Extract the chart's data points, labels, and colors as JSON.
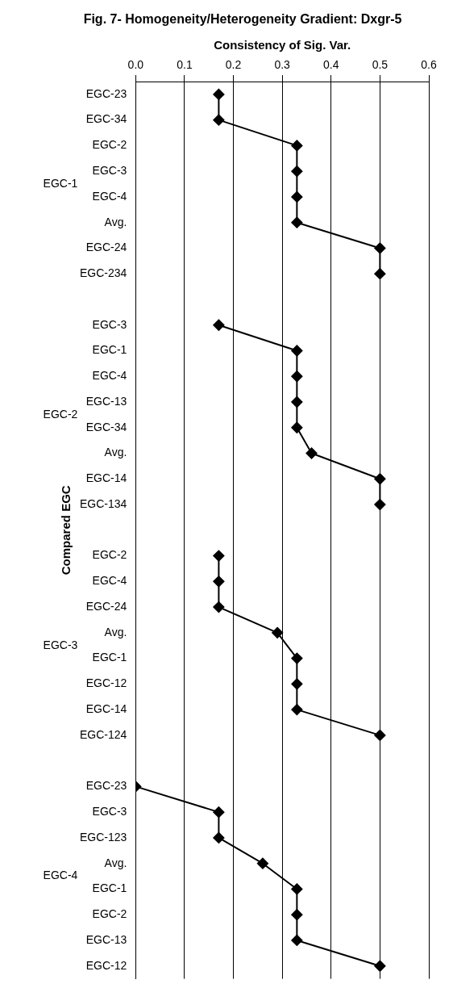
{
  "chart_data": {
    "type": "line",
    "orientation": "horizontal",
    "title": "Fig. 7- Homogeneity/Heterogeneity Gradient: Dxgr-5",
    "xlabel": "Consistency of Sig. Var.",
    "ylabel": "Compared EGC",
    "annotations": [
      "EGC-1",
      "EGC-2",
      "EGC-3",
      "EGC-4"
    ],
    "categories": [
      "EGC-23",
      "EGC-34",
      "EGC-2",
      "EGC-3",
      "EGC-4",
      "Avg.",
      "EGC-24",
      "EGC-234",
      null,
      "EGC-3",
      "EGC-1",
      "EGC-4",
      "EGC-13",
      "EGC-34",
      "Avg.",
      "EGC-14",
      "EGC-134",
      null,
      "EGC-2",
      "EGC-4",
      "EGC-24",
      "Avg.",
      "EGC-1",
      "EGC-12",
      "EGC-14",
      "EGC-124",
      null,
      "EGC-23",
      "EGC-3",
      "EGC-123",
      "Avg.",
      "EGC-1",
      "EGC-2",
      "EGC-13",
      "EGC-12"
    ],
    "series": [
      {
        "color": "#000000",
        "values": [
          0.17,
          0.17,
          0.33,
          0.33,
          0.33,
          0.33,
          0.5,
          0.5,
          null,
          null,
          null,
          null,
          null,
          null,
          null,
          null,
          null,
          null,
          null,
          null,
          null,
          null,
          null,
          null,
          null,
          null,
          null,
          null,
          null,
          null,
          null,
          null,
          null,
          null,
          null
        ]
      },
      {
        "color": "#000000",
        "values": [
          null,
          null,
          null,
          null,
          null,
          null,
          null,
          null,
          null,
          0.17,
          0.33,
          0.33,
          0.33,
          0.33,
          0.36,
          0.5,
          0.5,
          null,
          null,
          null,
          null,
          null,
          null,
          null,
          null,
          null,
          null,
          null,
          null,
          null,
          null,
          null,
          null,
          null,
          null
        ]
      },
      {
        "color": "#000000",
        "values": [
          null,
          null,
          null,
          null,
          null,
          null,
          null,
          null,
          null,
          null,
          null,
          null,
          null,
          null,
          null,
          null,
          null,
          null,
          0.17,
          0.17,
          0.17,
          0.29,
          0.33,
          0.33,
          0.33,
          0.5,
          null,
          null,
          null,
          null,
          null,
          null,
          null,
          null,
          null
        ]
      },
      {
        "color": "#000000",
        "values": [
          null,
          null,
          null,
          null,
          null,
          null,
          null,
          null,
          null,
          null,
          null,
          null,
          null,
          null,
          null,
          null,
          null,
          null,
          null,
          null,
          null,
          null,
          null,
          null,
          null,
          null,
          null,
          0,
          0.17,
          0.17,
          0.26,
          0.33,
          0.33,
          0.33,
          0.5
        ]
      }
    ],
    "xlim": [
      0,
      0.6
    ],
    "xticks": [
      {
        "value": 0,
        "label": "0.0"
      },
      {
        "value": 0.1,
        "label": "0.1"
      },
      {
        "value": 0.2,
        "label": "0.2"
      },
      {
        "value": 0.3,
        "label": "0.3"
      },
      {
        "value": 0.4,
        "label": "0.4"
      },
      {
        "value": 0.5,
        "label": "0.5"
      },
      {
        "value": 0.6,
        "label": "0.6"
      }
    ],
    "grid": "x",
    "legend": false,
    "marker": "diamond",
    "line_style": "solid"
  }
}
